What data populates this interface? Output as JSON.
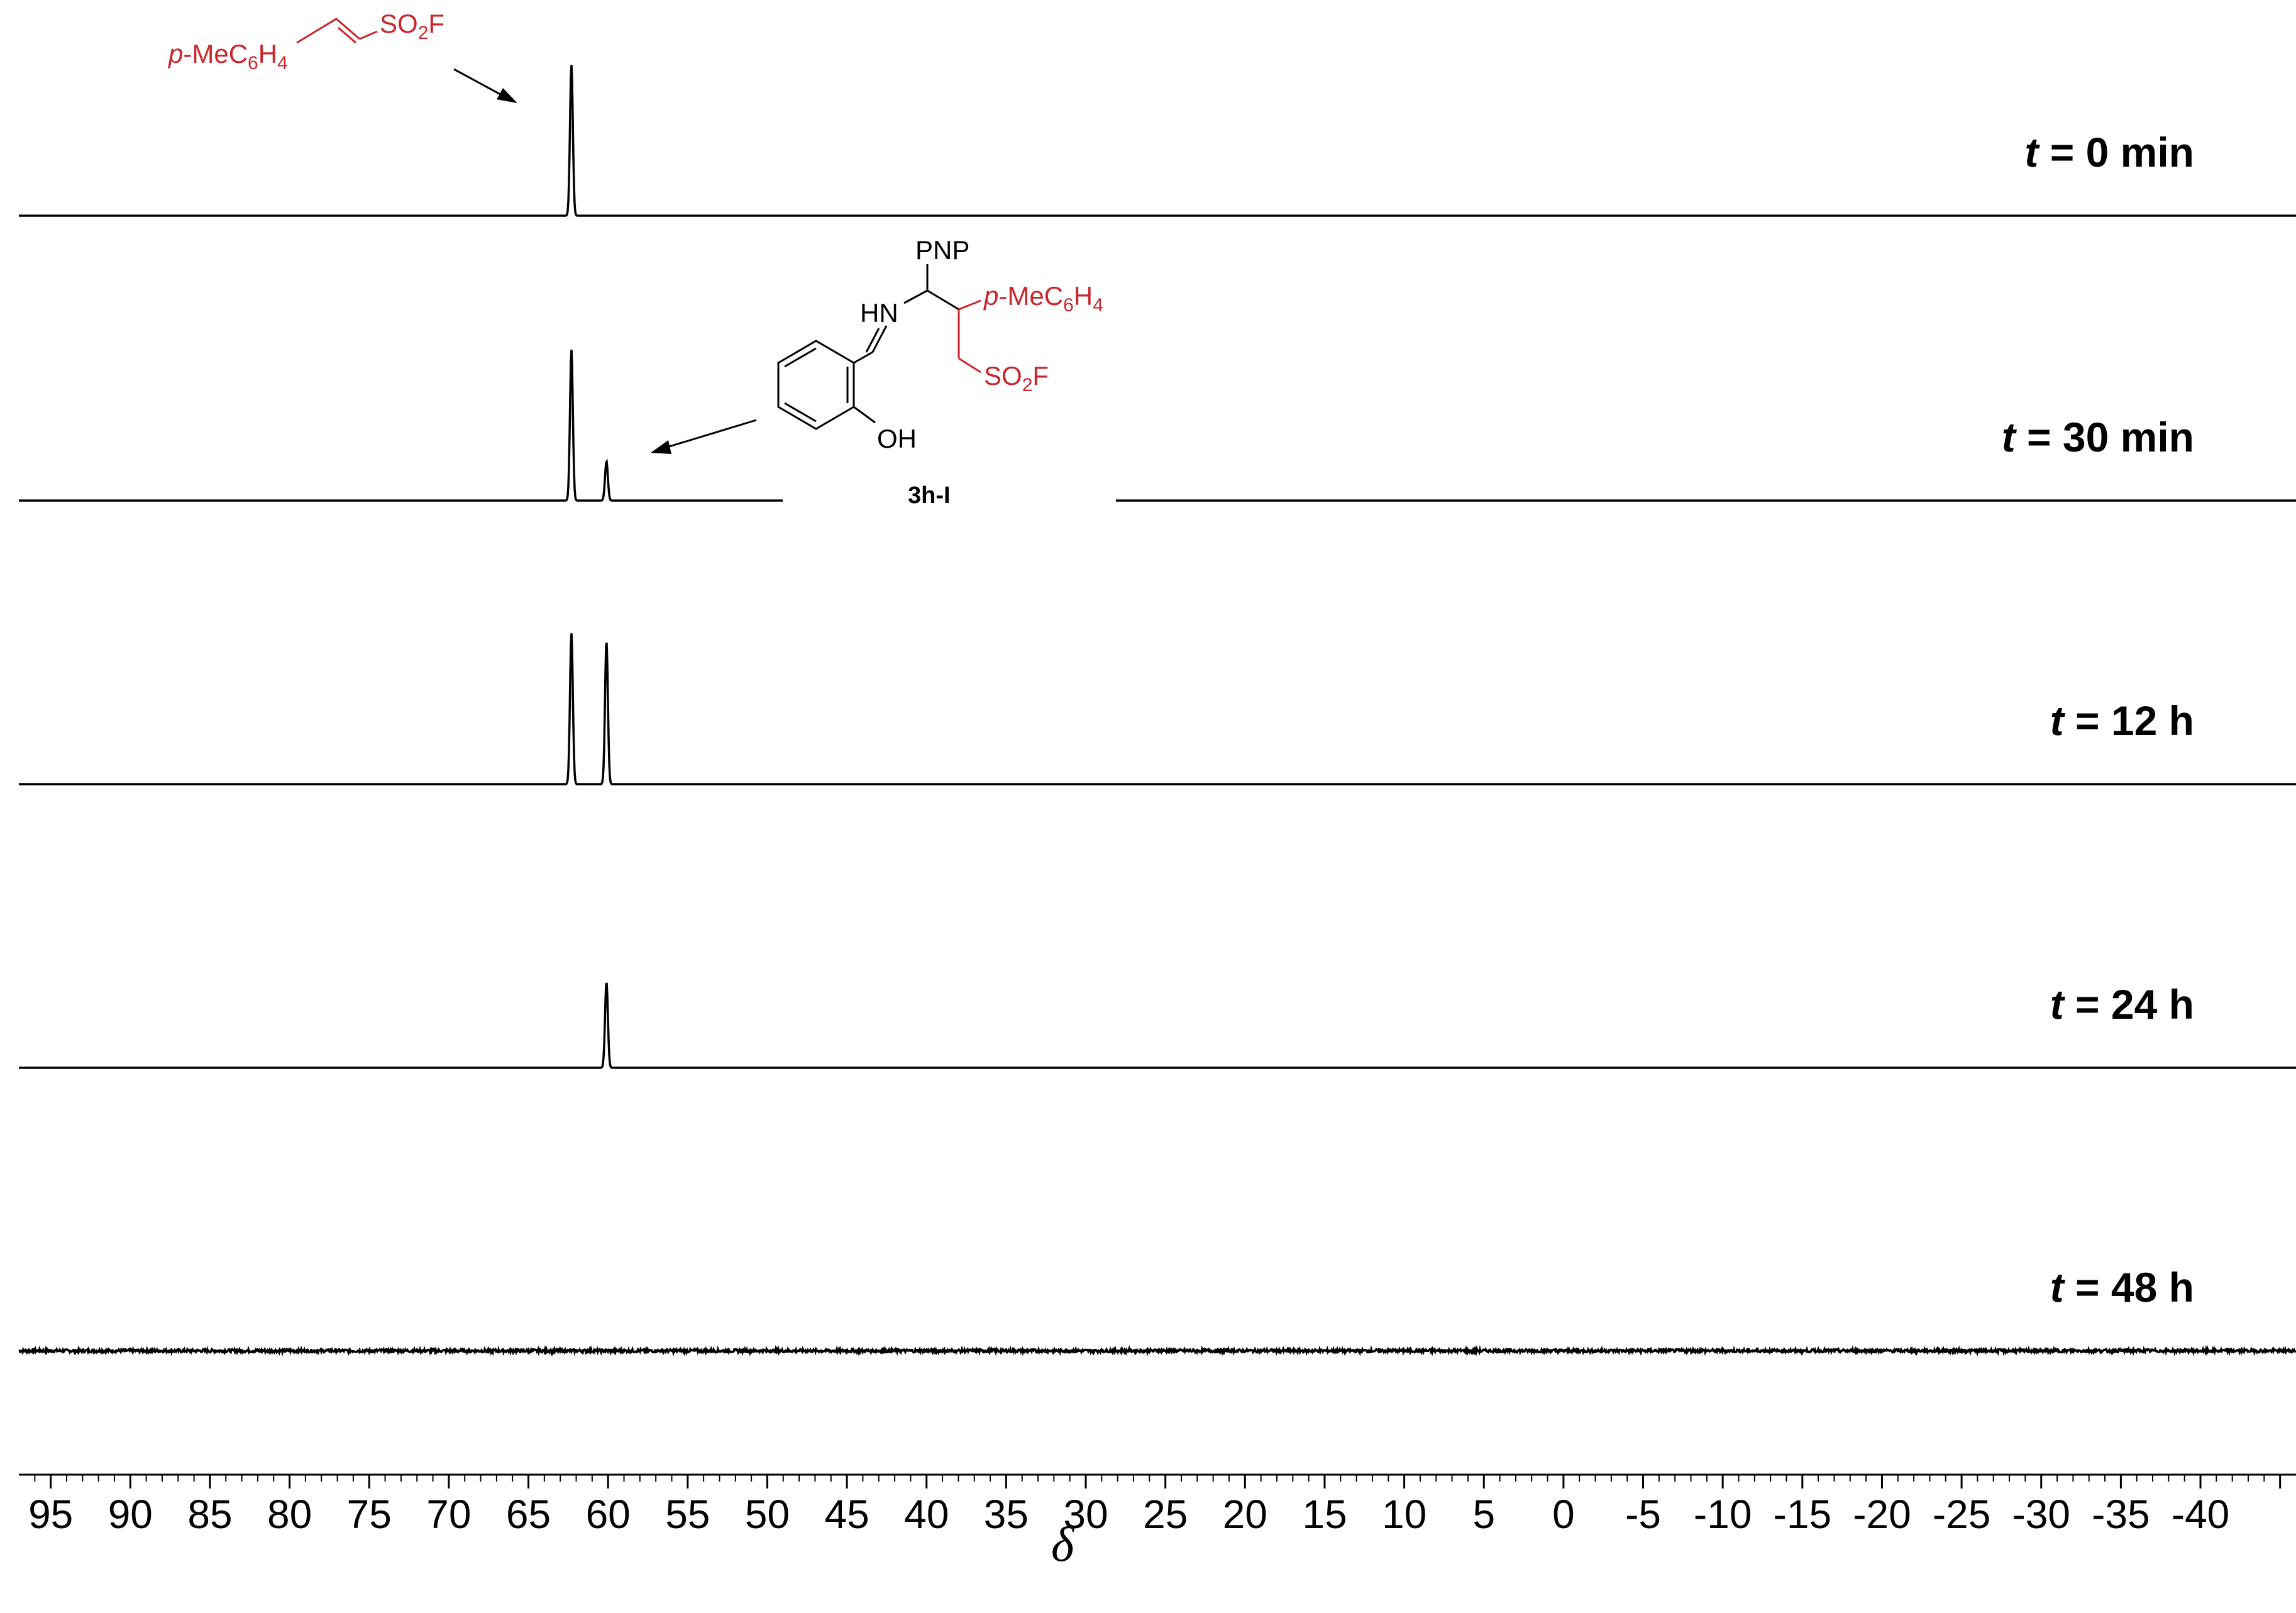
{
  "chart_data": {
    "type": "line",
    "xlabel": "δ",
    "xlim": [
      97,
      -46
    ],
    "x_ticks": [
      95,
      90,
      85,
      80,
      75,
      70,
      65,
      60,
      55,
      50,
      45,
      40,
      35,
      30,
      25,
      20,
      15,
      10,
      5,
      0,
      -5,
      -10,
      -15,
      -20,
      -25,
      -30,
      -35,
      -40
    ],
    "series": [
      {
        "time_label": "0 min",
        "peaks": [
          {
            "x": 62.3,
            "height": 1.0
          }
        ],
        "noise": 0
      },
      {
        "time_label": "30 min",
        "peaks": [
          {
            "x": 62.3,
            "height": 1.0
          },
          {
            "x": 60.1,
            "height": 0.26
          }
        ],
        "noise": 0
      },
      {
        "time_label": "12 h",
        "peaks": [
          {
            "x": 62.3,
            "height": 1.0
          },
          {
            "x": 60.1,
            "height": 0.95
          }
        ],
        "noise": 0
      },
      {
        "time_label": "24 h",
        "peaks": [
          {
            "x": 60.1,
            "height": 0.57
          }
        ],
        "noise": 0
      },
      {
        "time_label": "48 h",
        "peaks": [],
        "noise": 1
      }
    ],
    "annotations": {
      "reactant": {
        "p": "p",
        "mec": "-MeC",
        "six": "6",
        "h": "H",
        "four": "4",
        "so": "SO",
        "two": "2",
        "f": "F"
      },
      "product": {
        "pnp": "PNP",
        "hn": "HN",
        "oh": "OH",
        "p": "p",
        "mec": "-MeC",
        "six": "6",
        "h": "H",
        "four": "4",
        "so": "SO",
        "two": "2",
        "f": "F",
        "label": "3h-I"
      }
    },
    "time_prefix": "t",
    "time_eq": " = ",
    "colors": {
      "trace": "#000000",
      "reactant": "#c8262d"
    }
  }
}
